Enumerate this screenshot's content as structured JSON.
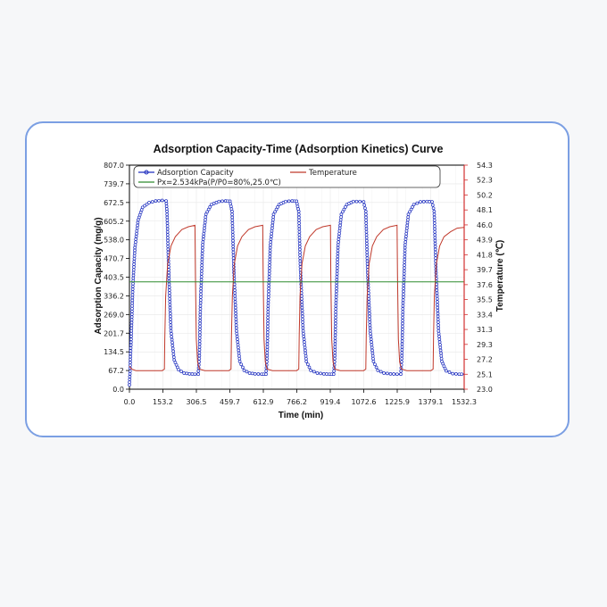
{
  "chart_data": {
    "type": "line",
    "title": "Adsorption Capacity-Time (Adsorption Kinetics) Curve",
    "xlabel": "Time (min)",
    "ylabel_left": "Adsorption Capacity (mg/g)",
    "ylabel_right": "Temperature (℃)",
    "xlim": [
      0.0,
      1532.3
    ],
    "ylim_left": [
      0.0,
      807.0
    ],
    "ylim_right": [
      23.0,
      54.3
    ],
    "x_ticks": [
      "0.0",
      "153.2",
      "306.5",
      "459.7",
      "612.9",
      "766.2",
      "919.4",
      "1072.6",
      "1225.9",
      "1379.1",
      "1532.3"
    ],
    "y_left_ticks": [
      "0.0",
      "67.2",
      "134.5",
      "201.7",
      "269.0",
      "336.2",
      "403.5",
      "470.7",
      "538.0",
      "605.2",
      "672.5",
      "739.7",
      "807.0"
    ],
    "y_right_ticks": [
      "23.0",
      "25.1",
      "27.2",
      "29.3",
      "31.3",
      "33.4",
      "35.5",
      "37.6",
      "39.7",
      "41.8",
      "43.9",
      "46.0",
      "48.1",
      "50.2",
      "52.3",
      "54.3"
    ],
    "grid": true,
    "legend_position": "top",
    "series": [
      {
        "name": "Adsorption Capacity",
        "axis": "left",
        "color": "#1f2fbf",
        "marker": "circle",
        "x": [
          0,
          3,
          8,
          15,
          25,
          40,
          60,
          90,
          120,
          150,
          168,
          172,
          180,
          190,
          205,
          225,
          250,
          275,
          300,
          315,
          320,
          325,
          335,
          350,
          375,
          410,
          440,
          460,
          470,
          478,
          490,
          505,
          525,
          550,
          575,
          605,
          625,
          630,
          635,
          645,
          660,
          685,
          715,
          745,
          765,
          775,
          783,
          795,
          810,
          830,
          860,
          890,
          915,
          935,
          940,
          945,
          955,
          970,
          995,
          1025,
          1055,
          1072,
          1082,
          1090,
          1102,
          1117,
          1137,
          1165,
          1195,
          1225,
          1242,
          1247,
          1252,
          1262,
          1277,
          1302,
          1332,
          1362,
          1385,
          1395,
          1403,
          1415,
          1430,
          1450,
          1480,
          1510,
          1532
        ],
        "y": [
          15,
          65,
          190,
          360,
          510,
          610,
          655,
          672,
          678,
          680,
          678,
          640,
          420,
          210,
          105,
          70,
          58,
          55,
          54,
          54,
          110,
          300,
          520,
          630,
          665,
          676,
          678,
          677,
          640,
          430,
          210,
          100,
          68,
          58,
          55,
          54,
          54,
          110,
          300,
          520,
          630,
          665,
          676,
          678,
          677,
          640,
          430,
          210,
          100,
          68,
          58,
          55,
          54,
          54,
          110,
          300,
          520,
          630,
          665,
          676,
          676,
          675,
          640,
          430,
          210,
          100,
          68,
          58,
          55,
          54,
          54,
          110,
          300,
          520,
          630,
          665,
          675,
          676,
          675,
          640,
          430,
          210,
          100,
          66,
          56,
          54,
          54
        ]
      },
      {
        "name": "Temperature",
        "axis": "right",
        "color": "#c0392b",
        "x": [
          0,
          10,
          30,
          60,
          100,
          150,
          160,
          162,
          166,
          175,
          190,
          210,
          240,
          270,
          300,
          302,
          306,
          312,
          320,
          345,
          380,
          420,
          455,
          465,
          467,
          471,
          480,
          495,
          515,
          545,
          575,
          610,
          612,
          616,
          622,
          630,
          655,
          690,
          730,
          765,
          775,
          777,
          781,
          790,
          805,
          825,
          855,
          885,
          920,
          922,
          926,
          932,
          940,
          965,
          1000,
          1040,
          1072,
          1082,
          1084,
          1088,
          1097,
          1112,
          1132,
          1162,
          1192,
          1225,
          1227,
          1231,
          1237,
          1245,
          1270,
          1305,
          1345,
          1380,
          1390,
          1392,
          1396,
          1405,
          1420,
          1440,
          1470,
          1500,
          1532
        ],
        "y": [
          26.2,
          25.8,
          25.6,
          25.6,
          25.6,
          25.6,
          25.8,
          30.0,
          36.0,
          40.5,
          43.0,
          44.3,
          45.3,
          45.7,
          45.9,
          39.0,
          30.0,
          26.8,
          25.8,
          25.6,
          25.6,
          25.6,
          25.6,
          25.8,
          30.5,
          36.0,
          40.5,
          43.0,
          44.3,
          45.3,
          45.7,
          45.9,
          39.0,
          30.0,
          26.8,
          25.8,
          25.6,
          25.6,
          25.6,
          25.6,
          25.8,
          30.5,
          36.0,
          40.5,
          43.0,
          44.3,
          45.3,
          45.7,
          45.9,
          39.0,
          30.0,
          26.8,
          25.8,
          25.6,
          25.6,
          25.6,
          25.6,
          25.8,
          30.5,
          36.0,
          40.5,
          43.0,
          44.3,
          45.3,
          45.7,
          45.9,
          39.0,
          30.0,
          26.8,
          25.8,
          25.6,
          25.6,
          25.6,
          25.6,
          25.8,
          30.5,
          36.0,
          40.5,
          43.0,
          44.3,
          45.0,
          45.5,
          45.6
        ]
      },
      {
        "name": "Px=2.534kPa(P/P0=80%,25.0℃)",
        "axis": "right",
        "color": "#2e8b2e",
        "x": [
          0,
          1532.3
        ],
        "y": [
          38.0,
          38.0
        ]
      }
    ]
  }
}
